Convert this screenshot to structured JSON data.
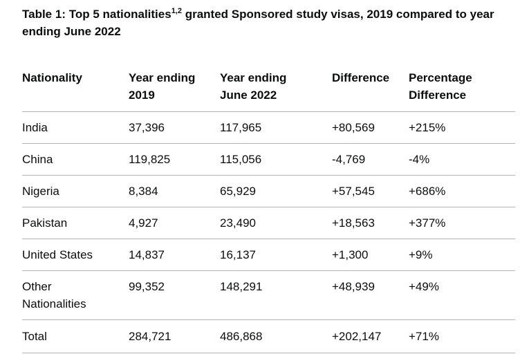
{
  "table": {
    "caption_part1": "Table 1: Top 5 nationalities",
    "caption_sup": "1,2",
    "caption_part2": " granted Sponsored study visas, 2019 compared to year ending June 2022",
    "headers": {
      "nationality": "Nationality",
      "year_2019_line1": "Year ending",
      "year_2019_line2": "2019",
      "year_2022_line1": "Year ending",
      "year_2022_line2": "June 2022",
      "difference": "Difference",
      "pct_line1": "Percentage",
      "pct_line2": "Difference"
    },
    "rows": [
      {
        "nationality": "India",
        "y2019": "37,396",
        "y2022": "117,965",
        "difference": "+80,569",
        "pct": "+215%"
      },
      {
        "nationality": "China",
        "y2019": "119,825",
        "y2022": "115,056",
        "difference": "-4,769",
        "pct": "-4%"
      },
      {
        "nationality": "Nigeria",
        "y2019": "8,384",
        "y2022": "65,929",
        "difference": "+57,545",
        "pct": "+686%"
      },
      {
        "nationality": "Pakistan",
        "y2019": "4,927",
        "y2022": "23,490",
        "difference": "+18,563",
        "pct": "+377%"
      },
      {
        "nationality": "United States",
        "y2019": "14,837",
        "y2022": "16,137",
        "difference": "+1,300",
        "pct": "+9%"
      },
      {
        "nationality_line1": "Other",
        "nationality_line2": "Nationalities",
        "y2019": "99,352",
        "y2022": "148,291",
        "difference": "+48,939",
        "pct": "+49%"
      }
    ],
    "total": {
      "label": "Total",
      "y2019": "284,721",
      "y2022": "486,868",
      "difference": "+202,147",
      "pct": "+71%"
    }
  }
}
